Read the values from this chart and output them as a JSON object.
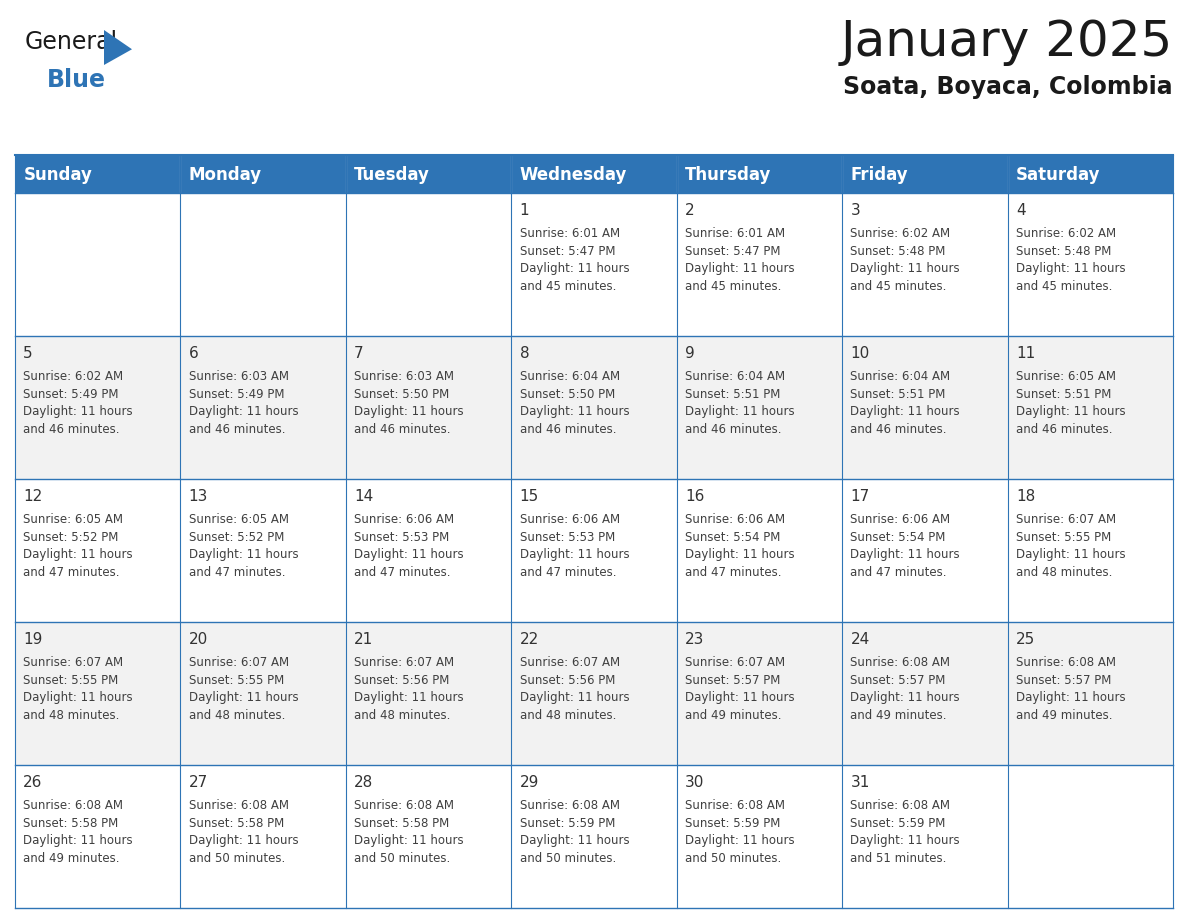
{
  "title": "January 2025",
  "subtitle": "Soata, Boyaca, Colombia",
  "header_color": "#2E74B5",
  "header_text_color": "#FFFFFF",
  "cell_bg_white": "#FFFFFF",
  "cell_bg_gray": "#F2F2F2",
  "border_color": "#2E74B5",
  "text_color": "#404040",
  "day_num_color": "#333333",
  "logo_black": "#1a1a1a",
  "logo_blue": "#2E74B5",
  "days_of_week": [
    "Sunday",
    "Monday",
    "Tuesday",
    "Wednesday",
    "Thursday",
    "Friday",
    "Saturday"
  ],
  "title_fontsize": 36,
  "subtitle_fontsize": 17,
  "dow_fontsize": 12,
  "day_num_fontsize": 11,
  "info_fontsize": 8.5,
  "calendar_data": [
    [
      {
        "day": "",
        "info": ""
      },
      {
        "day": "",
        "info": ""
      },
      {
        "day": "",
        "info": ""
      },
      {
        "day": "1",
        "info": "Sunrise: 6:01 AM\nSunset: 5:47 PM\nDaylight: 11 hours\nand 45 minutes."
      },
      {
        "day": "2",
        "info": "Sunrise: 6:01 AM\nSunset: 5:47 PM\nDaylight: 11 hours\nand 45 minutes."
      },
      {
        "day": "3",
        "info": "Sunrise: 6:02 AM\nSunset: 5:48 PM\nDaylight: 11 hours\nand 45 minutes."
      },
      {
        "day": "4",
        "info": "Sunrise: 6:02 AM\nSunset: 5:48 PM\nDaylight: 11 hours\nand 45 minutes."
      }
    ],
    [
      {
        "day": "5",
        "info": "Sunrise: 6:02 AM\nSunset: 5:49 PM\nDaylight: 11 hours\nand 46 minutes."
      },
      {
        "day": "6",
        "info": "Sunrise: 6:03 AM\nSunset: 5:49 PM\nDaylight: 11 hours\nand 46 minutes."
      },
      {
        "day": "7",
        "info": "Sunrise: 6:03 AM\nSunset: 5:50 PM\nDaylight: 11 hours\nand 46 minutes."
      },
      {
        "day": "8",
        "info": "Sunrise: 6:04 AM\nSunset: 5:50 PM\nDaylight: 11 hours\nand 46 minutes."
      },
      {
        "day": "9",
        "info": "Sunrise: 6:04 AM\nSunset: 5:51 PM\nDaylight: 11 hours\nand 46 minutes."
      },
      {
        "day": "10",
        "info": "Sunrise: 6:04 AM\nSunset: 5:51 PM\nDaylight: 11 hours\nand 46 minutes."
      },
      {
        "day": "11",
        "info": "Sunrise: 6:05 AM\nSunset: 5:51 PM\nDaylight: 11 hours\nand 46 minutes."
      }
    ],
    [
      {
        "day": "12",
        "info": "Sunrise: 6:05 AM\nSunset: 5:52 PM\nDaylight: 11 hours\nand 47 minutes."
      },
      {
        "day": "13",
        "info": "Sunrise: 6:05 AM\nSunset: 5:52 PM\nDaylight: 11 hours\nand 47 minutes."
      },
      {
        "day": "14",
        "info": "Sunrise: 6:06 AM\nSunset: 5:53 PM\nDaylight: 11 hours\nand 47 minutes."
      },
      {
        "day": "15",
        "info": "Sunrise: 6:06 AM\nSunset: 5:53 PM\nDaylight: 11 hours\nand 47 minutes."
      },
      {
        "day": "16",
        "info": "Sunrise: 6:06 AM\nSunset: 5:54 PM\nDaylight: 11 hours\nand 47 minutes."
      },
      {
        "day": "17",
        "info": "Sunrise: 6:06 AM\nSunset: 5:54 PM\nDaylight: 11 hours\nand 47 minutes."
      },
      {
        "day": "18",
        "info": "Sunrise: 6:07 AM\nSunset: 5:55 PM\nDaylight: 11 hours\nand 48 minutes."
      }
    ],
    [
      {
        "day": "19",
        "info": "Sunrise: 6:07 AM\nSunset: 5:55 PM\nDaylight: 11 hours\nand 48 minutes."
      },
      {
        "day": "20",
        "info": "Sunrise: 6:07 AM\nSunset: 5:55 PM\nDaylight: 11 hours\nand 48 minutes."
      },
      {
        "day": "21",
        "info": "Sunrise: 6:07 AM\nSunset: 5:56 PM\nDaylight: 11 hours\nand 48 minutes."
      },
      {
        "day": "22",
        "info": "Sunrise: 6:07 AM\nSunset: 5:56 PM\nDaylight: 11 hours\nand 48 minutes."
      },
      {
        "day": "23",
        "info": "Sunrise: 6:07 AM\nSunset: 5:57 PM\nDaylight: 11 hours\nand 49 minutes."
      },
      {
        "day": "24",
        "info": "Sunrise: 6:08 AM\nSunset: 5:57 PM\nDaylight: 11 hours\nand 49 minutes."
      },
      {
        "day": "25",
        "info": "Sunrise: 6:08 AM\nSunset: 5:57 PM\nDaylight: 11 hours\nand 49 minutes."
      }
    ],
    [
      {
        "day": "26",
        "info": "Sunrise: 6:08 AM\nSunset: 5:58 PM\nDaylight: 11 hours\nand 49 minutes."
      },
      {
        "day": "27",
        "info": "Sunrise: 6:08 AM\nSunset: 5:58 PM\nDaylight: 11 hours\nand 50 minutes."
      },
      {
        "day": "28",
        "info": "Sunrise: 6:08 AM\nSunset: 5:58 PM\nDaylight: 11 hours\nand 50 minutes."
      },
      {
        "day": "29",
        "info": "Sunrise: 6:08 AM\nSunset: 5:59 PM\nDaylight: 11 hours\nand 50 minutes."
      },
      {
        "day": "30",
        "info": "Sunrise: 6:08 AM\nSunset: 5:59 PM\nDaylight: 11 hours\nand 50 minutes."
      },
      {
        "day": "31",
        "info": "Sunrise: 6:08 AM\nSunset: 5:59 PM\nDaylight: 11 hours\nand 51 minutes."
      },
      {
        "day": "",
        "info": ""
      }
    ]
  ]
}
